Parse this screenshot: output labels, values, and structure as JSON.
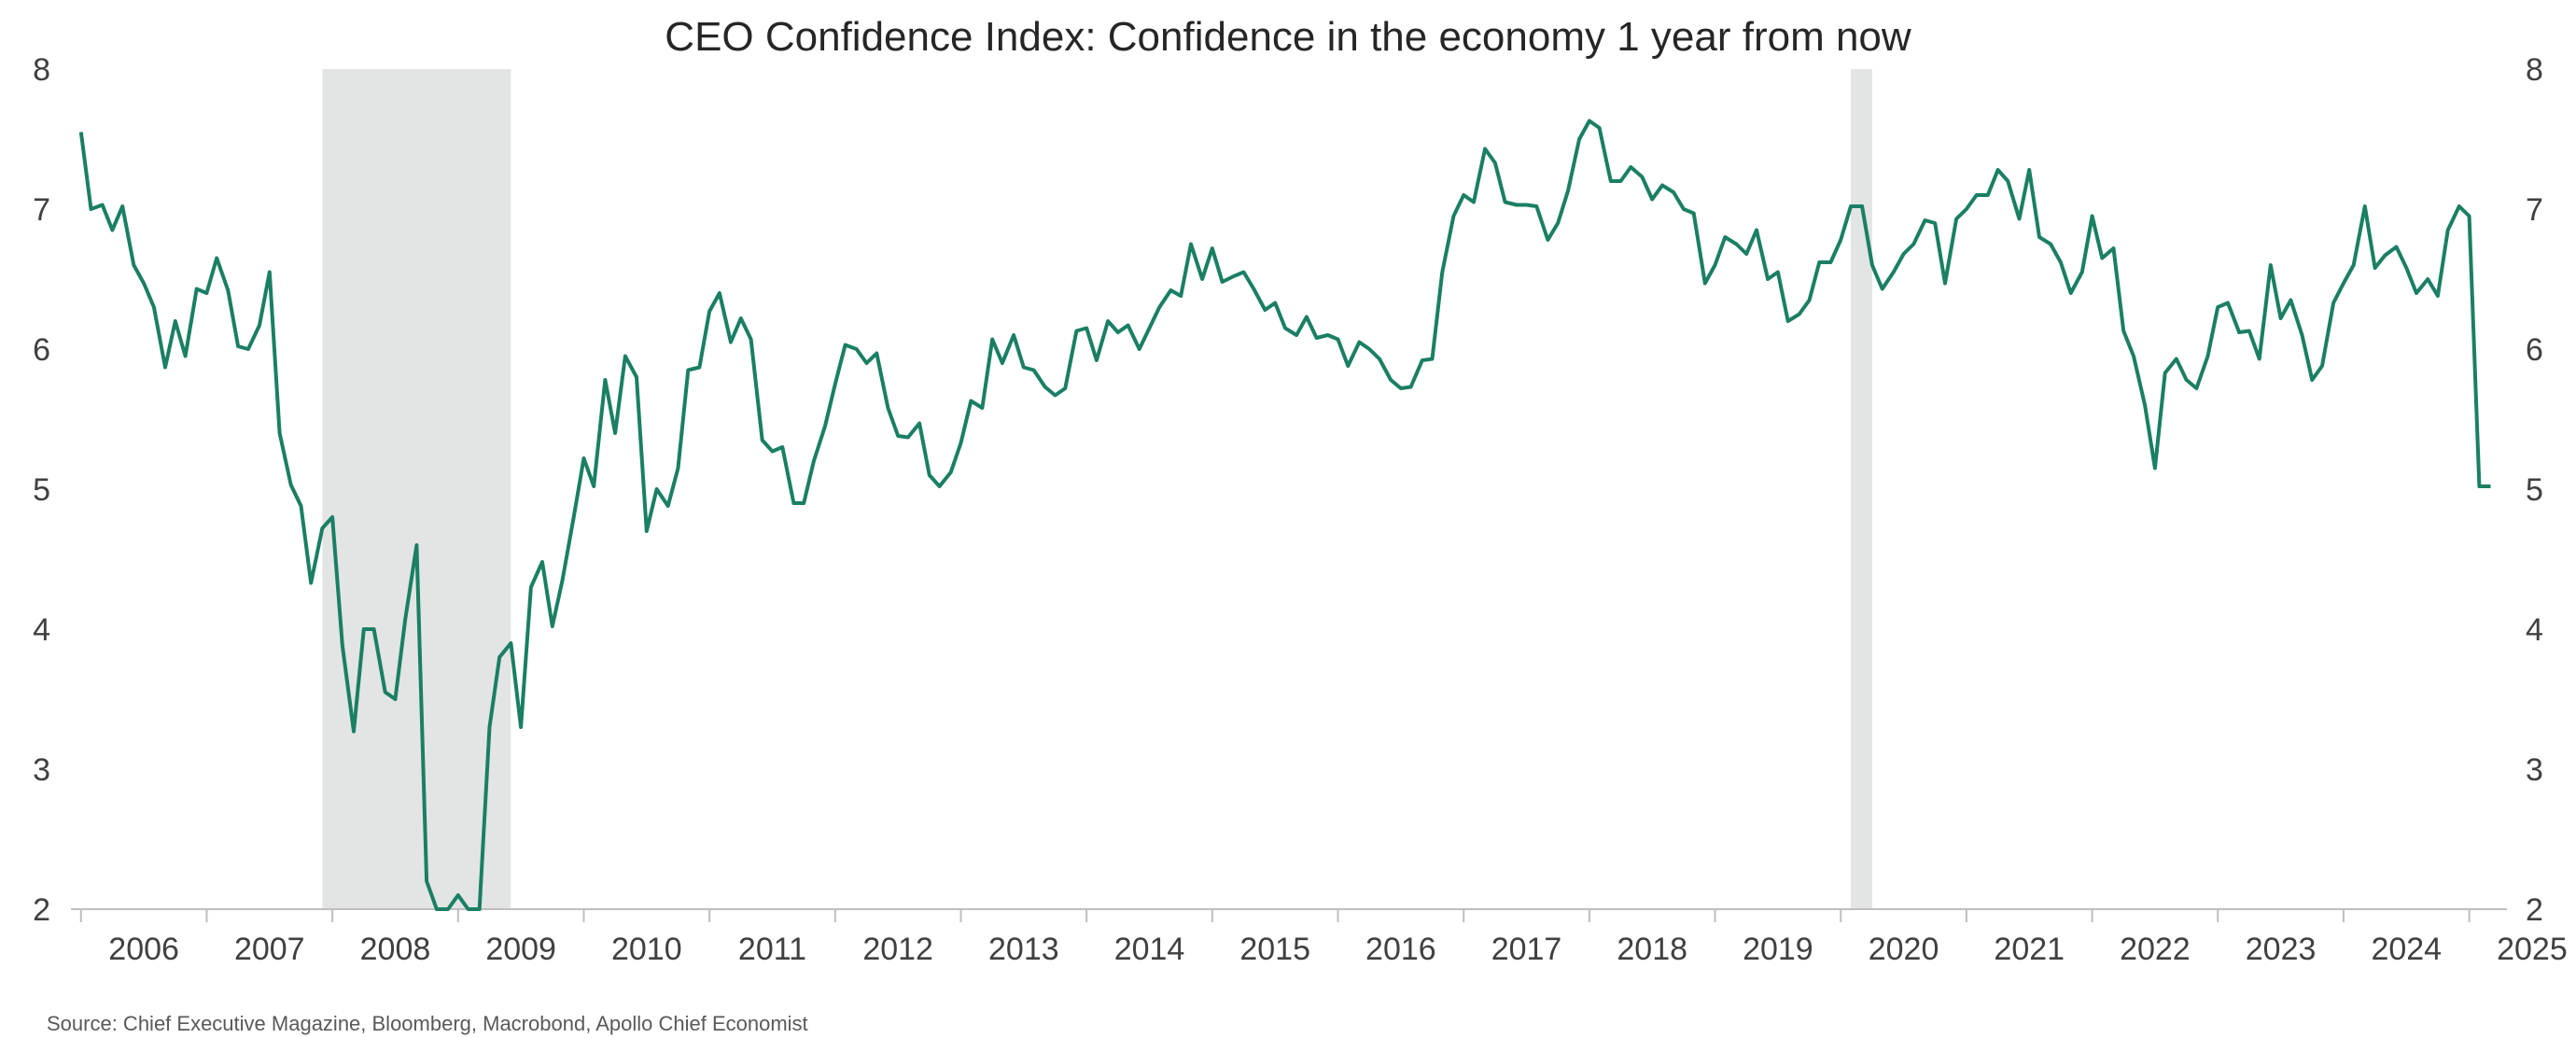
{
  "chart_data": {
    "type": "line",
    "title": "CEO Confidence Index: Confidence in the economy 1 year from now",
    "source": "Source: Chief Executive Magazine, Bloomberg, Macrobond, Apollo Chief Economist",
    "xlabel": "",
    "ylabel": "",
    "xlim": [
      2005.92,
      2025.3
    ],
    "ylim": [
      2,
      8
    ],
    "y_ticks": [
      2,
      3,
      4,
      5,
      6,
      7,
      8
    ],
    "x_ticks": [
      "2006",
      "2007",
      "2008",
      "2009",
      "2010",
      "2011",
      "2012",
      "2013",
      "2014",
      "2015",
      "2016",
      "2017",
      "2018",
      "2019",
      "2020",
      "2021",
      "2022",
      "2023",
      "2024",
      "2025"
    ],
    "dual_y_axis": true,
    "grid": false,
    "line_color": "#1a7f64",
    "recession_color": "#e3e4e4",
    "recession_periods": [
      [
        2007.92,
        2009.42
      ],
      [
        2020.08,
        2020.25
      ]
    ],
    "series": [
      {
        "values": [
          [
            2006.0,
            7.55
          ],
          [
            2006.08,
            7.0
          ],
          [
            2006.17,
            7.03
          ],
          [
            2006.25,
            6.85
          ],
          [
            2006.33,
            7.02
          ],
          [
            2006.42,
            6.6
          ],
          [
            2006.5,
            6.47
          ],
          [
            2006.58,
            6.3
          ],
          [
            2006.67,
            5.87
          ],
          [
            2006.75,
            6.2
          ],
          [
            2006.83,
            5.95
          ],
          [
            2006.92,
            6.43
          ],
          [
            2007.0,
            6.4
          ],
          [
            2007.08,
            6.65
          ],
          [
            2007.17,
            6.42
          ],
          [
            2007.25,
            6.02
          ],
          [
            2007.33,
            6.0
          ],
          [
            2007.42,
            6.17
          ],
          [
            2007.5,
            6.55
          ],
          [
            2007.58,
            5.4
          ],
          [
            2007.67,
            5.03
          ],
          [
            2007.75,
            4.88
          ],
          [
            2007.83,
            4.33
          ],
          [
            2007.92,
            4.72
          ],
          [
            2008.0,
            4.8
          ],
          [
            2008.08,
            3.88
          ],
          [
            2008.17,
            3.27
          ],
          [
            2008.25,
            4.0
          ],
          [
            2008.33,
            4.0
          ],
          [
            2008.42,
            3.55
          ],
          [
            2008.5,
            3.5
          ],
          [
            2008.58,
            4.07
          ],
          [
            2008.67,
            4.6
          ],
          [
            2008.75,
            2.2
          ],
          [
            2008.83,
            1.95
          ],
          [
            2008.92,
            1.95
          ],
          [
            2009.0,
            2.1
          ],
          [
            2009.08,
            1.95
          ],
          [
            2009.17,
            1.9
          ],
          [
            2009.25,
            3.3
          ],
          [
            2009.33,
            3.8
          ],
          [
            2009.42,
            3.9
          ],
          [
            2009.5,
            3.3
          ],
          [
            2009.58,
            4.3
          ],
          [
            2009.67,
            4.48
          ],
          [
            2009.75,
            4.02
          ],
          [
            2009.83,
            4.35
          ],
          [
            2009.92,
            4.8
          ],
          [
            2010.0,
            5.22
          ],
          [
            2010.08,
            5.02
          ],
          [
            2010.17,
            5.78
          ],
          [
            2010.25,
            5.4
          ],
          [
            2010.33,
            5.95
          ],
          [
            2010.42,
            5.8
          ],
          [
            2010.5,
            4.7
          ],
          [
            2010.58,
            5.0
          ],
          [
            2010.67,
            4.88
          ],
          [
            2010.75,
            5.15
          ],
          [
            2010.83,
            5.85
          ],
          [
            2010.92,
            5.87
          ],
          [
            2011.0,
            6.27
          ],
          [
            2011.08,
            6.4
          ],
          [
            2011.17,
            6.05
          ],
          [
            2011.25,
            6.22
          ],
          [
            2011.33,
            6.07
          ],
          [
            2011.42,
            5.35
          ],
          [
            2011.5,
            5.27
          ],
          [
            2011.58,
            5.3
          ],
          [
            2011.67,
            4.9
          ],
          [
            2011.75,
            4.9
          ],
          [
            2011.83,
            5.2
          ],
          [
            2011.92,
            5.45
          ],
          [
            2012.0,
            5.75
          ],
          [
            2012.08,
            6.03
          ],
          [
            2012.17,
            6.0
          ],
          [
            2012.25,
            5.9
          ],
          [
            2012.33,
            5.97
          ],
          [
            2012.42,
            5.58
          ],
          [
            2012.5,
            5.38
          ],
          [
            2012.58,
            5.37
          ],
          [
            2012.67,
            5.47
          ],
          [
            2012.75,
            5.1
          ],
          [
            2012.83,
            5.02
          ],
          [
            2012.92,
            5.12
          ],
          [
            2013.0,
            5.33
          ],
          [
            2013.08,
            5.63
          ],
          [
            2013.17,
            5.58
          ],
          [
            2013.25,
            6.07
          ],
          [
            2013.33,
            5.9
          ],
          [
            2013.42,
            6.1
          ],
          [
            2013.5,
            5.87
          ],
          [
            2013.58,
            5.85
          ],
          [
            2013.67,
            5.73
          ],
          [
            2013.75,
            5.67
          ],
          [
            2013.83,
            5.72
          ],
          [
            2013.92,
            6.13
          ],
          [
            2014.0,
            6.15
          ],
          [
            2014.08,
            5.92
          ],
          [
            2014.17,
            6.2
          ],
          [
            2014.25,
            6.12
          ],
          [
            2014.33,
            6.17
          ],
          [
            2014.42,
            6.0
          ],
          [
            2014.5,
            6.15
          ],
          [
            2014.58,
            6.3
          ],
          [
            2014.67,
            6.42
          ],
          [
            2014.75,
            6.38
          ],
          [
            2014.83,
            6.75
          ],
          [
            2014.92,
            6.5
          ],
          [
            2015.0,
            6.72
          ],
          [
            2015.08,
            6.48
          ],
          [
            2015.17,
            6.52
          ],
          [
            2015.25,
            6.55
          ],
          [
            2015.33,
            6.43
          ],
          [
            2015.42,
            6.28
          ],
          [
            2015.5,
            6.33
          ],
          [
            2015.58,
            6.15
          ],
          [
            2015.67,
            6.1
          ],
          [
            2015.75,
            6.23
          ],
          [
            2015.83,
            6.08
          ],
          [
            2015.92,
            6.1
          ],
          [
            2016.0,
            6.07
          ],
          [
            2016.08,
            5.88
          ],
          [
            2016.17,
            6.05
          ],
          [
            2016.25,
            6.0
          ],
          [
            2016.33,
            5.93
          ],
          [
            2016.42,
            5.78
          ],
          [
            2016.5,
            5.72
          ],
          [
            2016.58,
            5.73
          ],
          [
            2016.67,
            5.92
          ],
          [
            2016.75,
            5.93
          ],
          [
            2016.83,
            6.55
          ],
          [
            2016.92,
            6.95
          ],
          [
            2017.0,
            7.1
          ],
          [
            2017.08,
            7.05
          ],
          [
            2017.17,
            7.43
          ],
          [
            2017.25,
            7.33
          ],
          [
            2017.33,
            7.05
          ],
          [
            2017.42,
            7.03
          ],
          [
            2017.5,
            7.03
          ],
          [
            2017.58,
            7.02
          ],
          [
            2017.67,
            6.78
          ],
          [
            2017.75,
            6.9
          ],
          [
            2017.83,
            7.13
          ],
          [
            2017.92,
            7.5
          ],
          [
            2018.0,
            7.63
          ],
          [
            2018.08,
            7.58
          ],
          [
            2018.17,
            7.2
          ],
          [
            2018.25,
            7.2
          ],
          [
            2018.33,
            7.3
          ],
          [
            2018.42,
            7.23
          ],
          [
            2018.5,
            7.07
          ],
          [
            2018.58,
            7.17
          ],
          [
            2018.67,
            7.12
          ],
          [
            2018.75,
            7.0
          ],
          [
            2018.83,
            6.97
          ],
          [
            2018.92,
            6.47
          ],
          [
            2019.0,
            6.6
          ],
          [
            2019.08,
            6.8
          ],
          [
            2019.17,
            6.75
          ],
          [
            2019.25,
            6.68
          ],
          [
            2019.33,
            6.85
          ],
          [
            2019.42,
            6.5
          ],
          [
            2019.5,
            6.55
          ],
          [
            2019.58,
            6.2
          ],
          [
            2019.67,
            6.25
          ],
          [
            2019.75,
            6.35
          ],
          [
            2019.83,
            6.62
          ],
          [
            2019.92,
            6.62
          ],
          [
            2020.0,
            6.78
          ],
          [
            2020.08,
            7.02
          ],
          [
            2020.17,
            7.02
          ],
          [
            2020.25,
            6.6
          ],
          [
            2020.33,
            6.43
          ],
          [
            2020.42,
            6.55
          ],
          [
            2020.5,
            6.68
          ],
          [
            2020.58,
            6.75
          ],
          [
            2020.67,
            6.92
          ],
          [
            2020.75,
            6.9
          ],
          [
            2020.83,
            6.47
          ],
          [
            2020.92,
            6.93
          ],
          [
            2021.0,
            7.0
          ],
          [
            2021.08,
            7.1
          ],
          [
            2021.17,
            7.1
          ],
          [
            2021.25,
            7.28
          ],
          [
            2021.33,
            7.2
          ],
          [
            2021.42,
            6.93
          ],
          [
            2021.5,
            7.28
          ],
          [
            2021.58,
            6.8
          ],
          [
            2021.67,
            6.75
          ],
          [
            2021.75,
            6.62
          ],
          [
            2021.83,
            6.4
          ],
          [
            2021.92,
            6.55
          ],
          [
            2022.0,
            6.95
          ],
          [
            2022.08,
            6.65
          ],
          [
            2022.17,
            6.72
          ],
          [
            2022.25,
            6.13
          ],
          [
            2022.33,
            5.95
          ],
          [
            2022.42,
            5.6
          ],
          [
            2022.5,
            5.15
          ],
          [
            2022.58,
            5.83
          ],
          [
            2022.67,
            5.93
          ],
          [
            2022.75,
            5.78
          ],
          [
            2022.83,
            5.72
          ],
          [
            2022.92,
            5.95
          ],
          [
            2023.0,
            6.3
          ],
          [
            2023.08,
            6.33
          ],
          [
            2023.17,
            6.12
          ],
          [
            2023.25,
            6.13
          ],
          [
            2023.33,
            5.93
          ],
          [
            2023.42,
            6.6
          ],
          [
            2023.5,
            6.22
          ],
          [
            2023.58,
            6.35
          ],
          [
            2023.67,
            6.1
          ],
          [
            2023.75,
            5.78
          ],
          [
            2023.83,
            5.88
          ],
          [
            2023.92,
            6.33
          ],
          [
            2024.0,
            6.47
          ],
          [
            2024.08,
            6.6
          ],
          [
            2024.17,
            7.02
          ],
          [
            2024.25,
            6.58
          ],
          [
            2024.33,
            6.67
          ],
          [
            2024.42,
            6.73
          ],
          [
            2024.5,
            6.58
          ],
          [
            2024.58,
            6.4
          ],
          [
            2024.67,
            6.5
          ],
          [
            2024.75,
            6.38
          ],
          [
            2024.83,
            6.85
          ],
          [
            2024.92,
            7.02
          ],
          [
            2025.0,
            6.95
          ],
          [
            2025.08,
            5.02
          ],
          [
            2025.17,
            5.02
          ]
        ]
      }
    ]
  }
}
